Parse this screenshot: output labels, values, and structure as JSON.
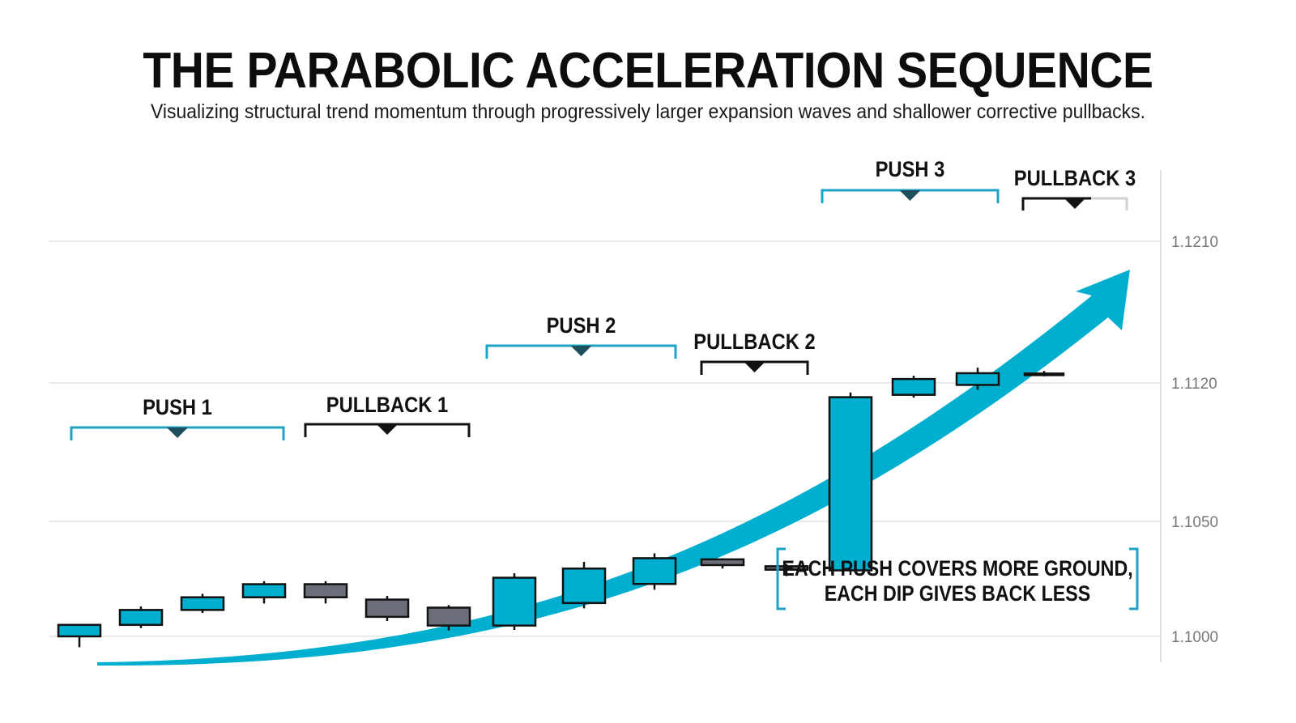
{
  "header": {
    "title": "THE PARABOLIC ACCELERATION SEQUENCE",
    "subtitle": "Visualizing structural trend momentum through progressively larger expansion waves and shallower corrective pullbacks."
  },
  "colors": {
    "bull": "#00aecf",
    "bear": "#6b6e78",
    "bracket_push": "#1fa3c4",
    "bracket_pullback": "#111111",
    "arrow": "#00aecf",
    "grid": "#dddddd"
  },
  "chart_data": {
    "type": "candlestick",
    "y_ticks": [
      "1.1000",
      "1.1050",
      "1.1120",
      "1.1210"
    ],
    "candles": [
      {
        "open": 1.1,
        "high": 1.10052,
        "low": 1.09958,
        "close": 1.1005,
        "dir": "up"
      },
      {
        "open": 1.1005,
        "high": 1.1013,
        "low": 1.10036,
        "close": 1.10115,
        "dir": "up"
      },
      {
        "open": 1.10115,
        "high": 1.10185,
        "low": 1.10102,
        "close": 1.1017,
        "dir": "up"
      },
      {
        "open": 1.1017,
        "high": 1.1024,
        "low": 1.10143,
        "close": 1.10227,
        "dir": "up"
      },
      {
        "open": 1.10227,
        "high": 1.1024,
        "low": 1.10143,
        "close": 1.1017,
        "dir": "down"
      },
      {
        "open": 1.1016,
        "high": 1.10176,
        "low": 1.10067,
        "close": 1.10085,
        "dir": "down"
      },
      {
        "open": 1.10125,
        "high": 1.10136,
        "low": 1.10026,
        "close": 1.10047,
        "dir": "down"
      },
      {
        "open": 1.10047,
        "high": 1.10274,
        "low": 1.10028,
        "close": 1.10255,
        "dir": "up"
      },
      {
        "open": 1.10145,
        "high": 1.10324,
        "low": 1.10122,
        "close": 1.10295,
        "dir": "up"
      },
      {
        "open": 1.10228,
        "high": 1.10361,
        "low": 1.10203,
        "close": 1.1034,
        "dir": "up"
      },
      {
        "open": 1.1031,
        "high": 1.1034,
        "low": 1.10295,
        "close": 1.10335,
        "dir": "down"
      },
      {
        "open": 1.10305,
        "high": 1.10314,
        "low": 1.10262,
        "close": 1.1029,
        "dir": "down"
      },
      {
        "open": 1.10287,
        "high": 1.11152,
        "low": 1.10267,
        "close": 1.11128,
        "dir": "up"
      },
      {
        "open": 1.1114,
        "high": 1.11246,
        "low": 1.11126,
        "close": 1.11225,
        "dir": "up"
      },
      {
        "open": 1.1119,
        "high": 1.11297,
        "low": 1.11166,
        "close": 1.11262,
        "dir": "up"
      },
      {
        "open": 1.1126,
        "high": 1.11276,
        "low": 1.11242,
        "close": 1.11252,
        "dir": "down"
      }
    ],
    "groups": [
      {
        "label": "PUSH 1",
        "kind": "push",
        "from": 0,
        "to": 3
      },
      {
        "label": "PULLBACK 1",
        "kind": "pullback",
        "from": 4,
        "to": 6
      },
      {
        "label": "PUSH 2",
        "kind": "push",
        "from": 7,
        "to": 9
      },
      {
        "label": "PULLBACK 2",
        "kind": "pullback",
        "from": 10,
        "to": 11
      },
      {
        "label": "PUSH 3",
        "kind": "push",
        "from": 12,
        "to": 14
      },
      {
        "label": "PULLBACK 3",
        "kind": "pullback",
        "from": 15,
        "to": 15
      }
    ],
    "annotation": [
      "EACH PUSH COVERS MORE GROUND,",
      "EACH DIP GIVES BACK LESS"
    ],
    "grid": true
  }
}
